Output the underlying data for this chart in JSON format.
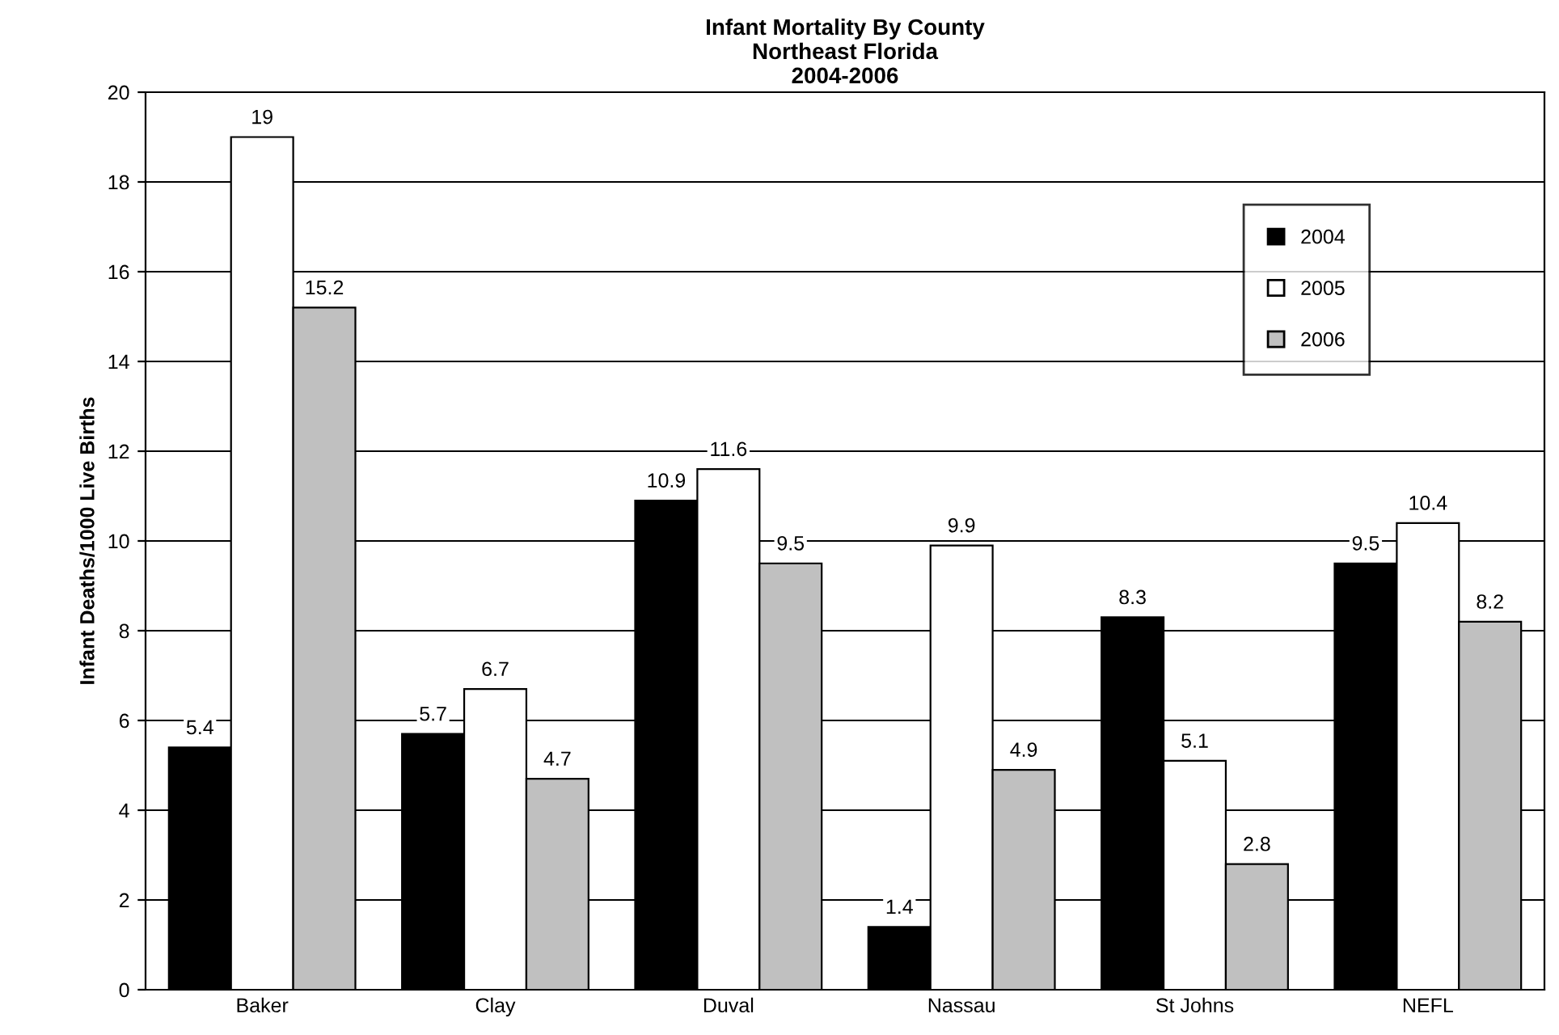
{
  "chart_data": {
    "type": "bar",
    "title": "Infant Mortality By County\nNortheast Florida\n2004-2006",
    "ylabel": "Infant Deaths/1000 Live Births",
    "categories": [
      "Baker",
      "Clay",
      "Duval",
      "Nassau",
      "St Johns",
      "NEFL"
    ],
    "series": [
      {
        "name": "2004",
        "color": "#000000",
        "values": [
          5.4,
          5.7,
          10.9,
          1.4,
          8.3,
          9.5
        ]
      },
      {
        "name": "2005",
        "color": "#ffffff",
        "values": [
          19,
          6.7,
          11.6,
          9.9,
          5.1,
          10.4
        ]
      },
      {
        "name": "2006",
        "color": "#c0c0c0",
        "values": [
          15.2,
          4.7,
          9.5,
          4.9,
          2.8,
          8.2
        ]
      }
    ],
    "ylim": [
      0,
      20
    ],
    "yticks": [
      0,
      2,
      4,
      6,
      8,
      10,
      12,
      14,
      16,
      18,
      20
    ],
    "grid": "y",
    "legend": "right",
    "data_labels": true
  }
}
